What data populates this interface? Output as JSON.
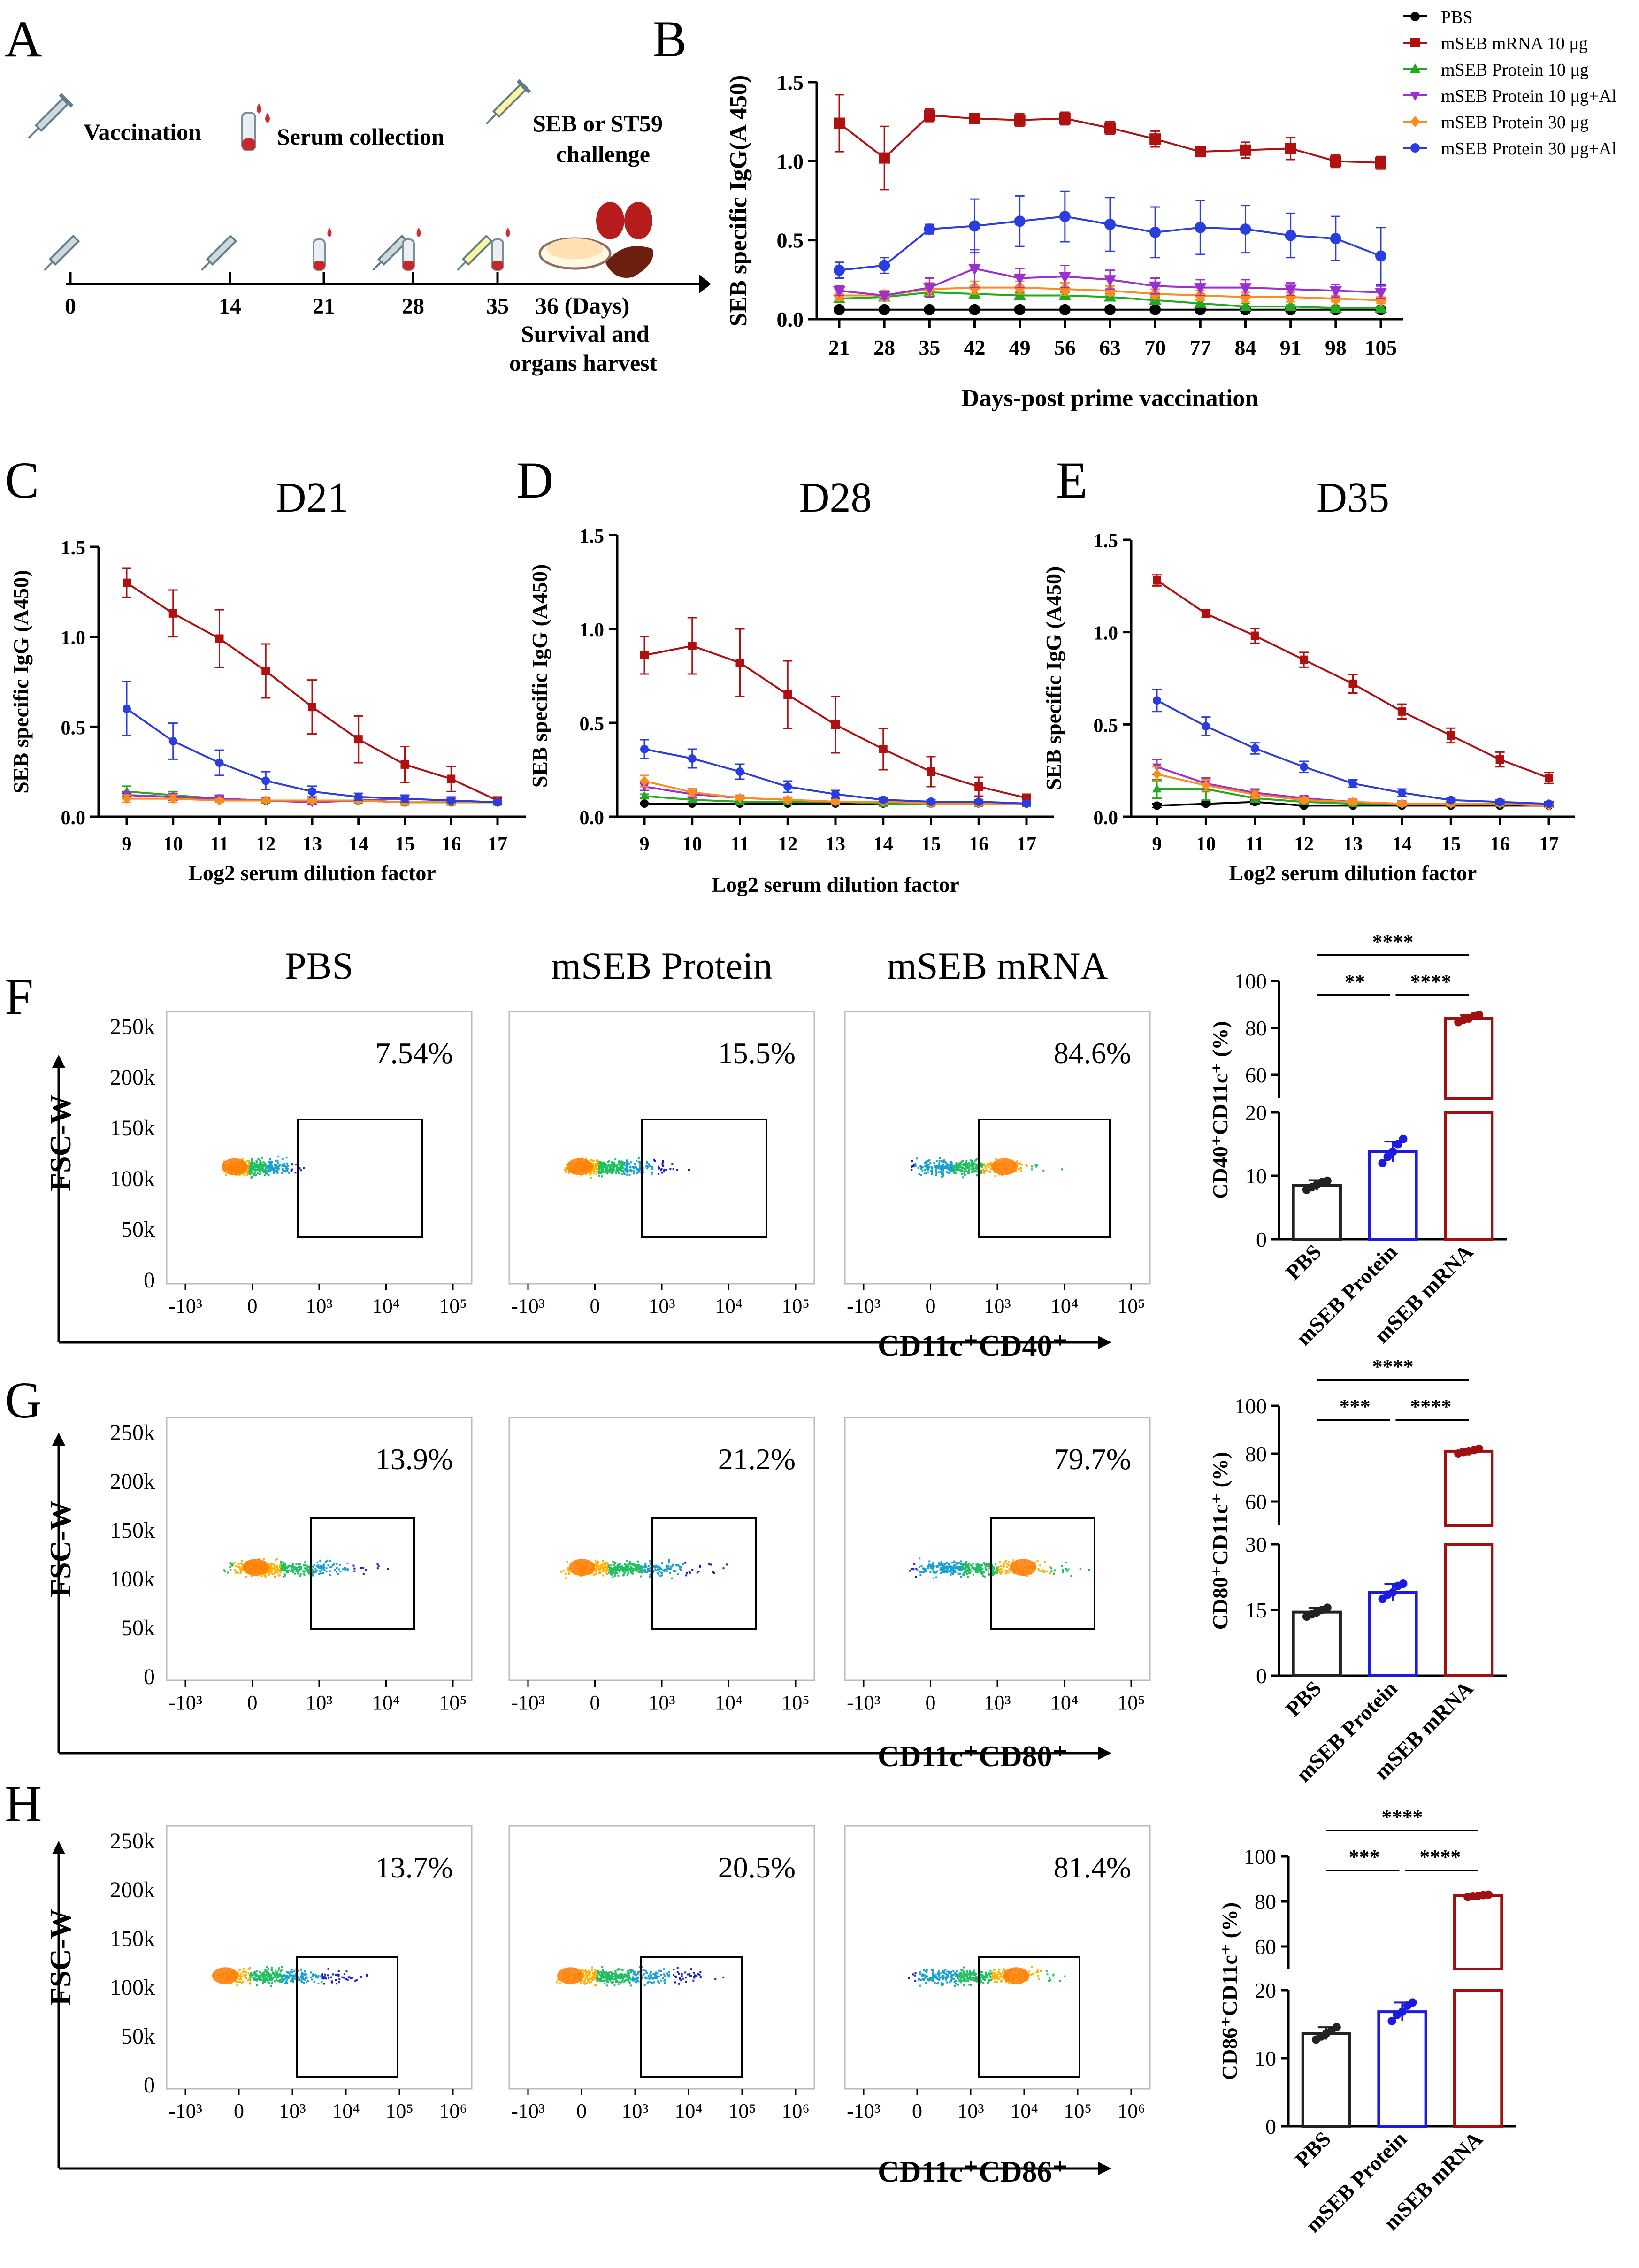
{
  "panel_letters": {
    "A": "A",
    "B": "B",
    "C": "C",
    "D": "D",
    "E": "E",
    "F": "F",
    "G": "G",
    "H": "H"
  },
  "colors": {
    "pbs": "#000000",
    "mrna10": "#b01010",
    "prot10": "#1faa1f",
    "prot10al": "#9b30d0",
    "prot30": "#ff8c1a",
    "prot30al": "#2a3de0",
    "mrna_bar": "#a01010",
    "protein_bar": "#1a1ae0",
    "gate": "#000000"
  },
  "timeline": {
    "icon_labels": {
      "vaccination": "Vaccination",
      "serum": "Serum collection",
      "challenge_1": "SEB or ST59",
      "challenge_2": "challenge"
    },
    "days": [
      "0",
      "14",
      "21",
      "28",
      "35"
    ],
    "day36": "36 (Days)",
    "outcome_1": "Survival and",
    "outcome_2": "organs harvest"
  },
  "chart_data": [
    {
      "id": "B",
      "type": "line",
      "title": "",
      "xlabel": "Days-post prime vaccination",
      "ylabel": "SEB specific IgG(A 450)",
      "x": [
        21,
        28,
        35,
        42,
        49,
        56,
        63,
        70,
        77,
        84,
        91,
        98,
        105
      ],
      "x_tick_labels": [
        "21",
        "28",
        "35",
        "42",
        "49",
        "56",
        "63",
        "70",
        "77",
        "84",
        "91",
        "98",
        "105"
      ],
      "y_ticks": [
        "0.0",
        "0.5",
        "1.0",
        "1.5"
      ],
      "ylim": [
        0,
        1.5
      ],
      "series": [
        {
          "name": "PBS",
          "key": "pbs",
          "marker": "circle",
          "values": [
            0.06,
            0.06,
            0.06,
            0.06,
            0.06,
            0.06,
            0.06,
            0.06,
            0.06,
            0.06,
            0.06,
            0.06,
            0.06
          ],
          "err": [
            0.005,
            0.005,
            0.005,
            0.005,
            0.005,
            0.005,
            0.005,
            0.005,
            0.005,
            0.005,
            0.005,
            0.005,
            0.005
          ]
        },
        {
          "name": "mSEB mRNA 10 μg",
          "key": "mrna10",
          "marker": "square",
          "values": [
            1.24,
            1.02,
            1.29,
            1.27,
            1.26,
            1.27,
            1.21,
            1.14,
            1.06,
            1.07,
            1.08,
            1.0,
            0.99
          ],
          "err": [
            0.18,
            0.2,
            0.04,
            0.03,
            0.04,
            0.04,
            0.04,
            0.05,
            0.01,
            0.05,
            0.07,
            0.04,
            0.04
          ]
        },
        {
          "name": "mSEB Protein 10 μg",
          "key": "prot10",
          "marker": "triangle",
          "values": [
            0.13,
            0.14,
            0.17,
            0.16,
            0.15,
            0.15,
            0.14,
            0.12,
            0.1,
            0.08,
            0.08,
            0.07,
            0.07
          ],
          "err": [
            0.02,
            0.02,
            0.03,
            0.03,
            0.02,
            0.02,
            0.02,
            0.02,
            0.02,
            0.02,
            0.01,
            0.01,
            0.01
          ]
        },
        {
          "name": "mSEB Protein 10 μg+Al",
          "key": "prot10al",
          "marker": "triangle-down",
          "values": [
            0.18,
            0.15,
            0.2,
            0.32,
            0.26,
            0.27,
            0.25,
            0.21,
            0.2,
            0.2,
            0.19,
            0.18,
            0.17
          ],
          "err": [
            0.03,
            0.02,
            0.06,
            0.12,
            0.06,
            0.07,
            0.06,
            0.05,
            0.05,
            0.05,
            0.04,
            0.04,
            0.04
          ]
        },
        {
          "name": "mSEB Protein 30 μg",
          "key": "prot30",
          "marker": "diamond",
          "values": [
            0.15,
            0.15,
            0.19,
            0.2,
            0.2,
            0.19,
            0.18,
            0.16,
            0.15,
            0.14,
            0.14,
            0.13,
            0.12
          ],
          "err": [
            0.03,
            0.03,
            0.04,
            0.04,
            0.04,
            0.04,
            0.03,
            0.03,
            0.03,
            0.03,
            0.03,
            0.02,
            0.02
          ]
        },
        {
          "name": "mSEB Protein 30 μg+Al",
          "key": "prot30al",
          "marker": "circle",
          "values": [
            0.31,
            0.34,
            0.57,
            0.59,
            0.62,
            0.65,
            0.6,
            0.55,
            0.58,
            0.57,
            0.53,
            0.51,
            0.4
          ],
          "err": [
            0.05,
            0.05,
            0.03,
            0.17,
            0.16,
            0.16,
            0.17,
            0.16,
            0.17,
            0.15,
            0.14,
            0.14,
            0.18
          ]
        }
      ]
    },
    {
      "id": "C",
      "type": "line",
      "title": "D21",
      "xlabel": "Log2 serum dilution factor",
      "ylabel": "SEB specific IgG (A450)",
      "x": [
        9,
        10,
        11,
        12,
        13,
        14,
        15,
        16,
        17
      ],
      "x_tick_labels": [
        "9",
        "10",
        "11",
        "12",
        "13",
        "14",
        "15",
        "16",
        "17"
      ],
      "y_ticks": [
        "0.0",
        "0.5",
        "1.0",
        "1.5"
      ],
      "ylim": [
        0,
        1.5
      ],
      "series": [
        {
          "name": "PBS",
          "key": "pbs",
          "values": [
            0.12,
            0.11,
            0.1,
            0.09,
            0.09,
            0.09,
            0.08,
            0.08,
            0.08
          ],
          "err": [
            0.01,
            0.01,
            0.01,
            0.01,
            0.01,
            0.01,
            0.01,
            0.01,
            0.01
          ]
        },
        {
          "name": "mSEB mRNA 10 μg",
          "key": "mrna10",
          "values": [
            1.3,
            1.13,
            0.99,
            0.81,
            0.61,
            0.43,
            0.29,
            0.21,
            0.09
          ],
          "err": [
            0.08,
            0.13,
            0.16,
            0.15,
            0.15,
            0.13,
            0.1,
            0.07,
            0.02
          ]
        },
        {
          "name": "mSEB Protein 10 μg",
          "key": "prot10",
          "values": [
            0.14,
            0.12,
            0.1,
            0.09,
            0.09,
            0.09,
            0.08,
            0.08,
            0.08
          ],
          "err": [
            0.03,
            0.02,
            0.02,
            0.01,
            0.01,
            0.01,
            0.01,
            0.01,
            0.01
          ]
        },
        {
          "name": "mSEB Protein 10 μg+Al",
          "key": "prot10al",
          "values": [
            0.12,
            0.11,
            0.1,
            0.09,
            0.08,
            0.09,
            0.1,
            0.09,
            0.08
          ],
          "err": [
            0.02,
            0.02,
            0.02,
            0.01,
            0.01,
            0.01,
            0.02,
            0.02,
            0.01
          ]
        },
        {
          "name": "mSEB Protein 30 μg",
          "key": "prot30",
          "values": [
            0.1,
            0.1,
            0.09,
            0.09,
            0.09,
            0.09,
            0.08,
            0.08,
            0.08
          ],
          "err": [
            0.02,
            0.02,
            0.01,
            0.01,
            0.01,
            0.01,
            0.01,
            0.01,
            0.01
          ]
        },
        {
          "name": "mSEB Protein 30 μg+Al",
          "key": "prot30al",
          "values": [
            0.6,
            0.42,
            0.3,
            0.2,
            0.14,
            0.11,
            0.1,
            0.09,
            0.08
          ],
          "err": [
            0.15,
            0.1,
            0.07,
            0.05,
            0.03,
            0.02,
            0.02,
            0.01,
            0.01
          ]
        }
      ]
    },
    {
      "id": "D",
      "type": "line",
      "title": "D28",
      "xlabel": "Log2 serum dilution factor",
      "ylabel": "SEB specific IgG (A450)",
      "x": [
        9,
        10,
        11,
        12,
        13,
        14,
        15,
        16,
        17
      ],
      "x_tick_labels": [
        "9",
        "10",
        "11",
        "12",
        "13",
        "14",
        "15",
        "16",
        "17"
      ],
      "y_ticks": [
        "0.0",
        "0.5",
        "1.0",
        "1.5"
      ],
      "ylim": [
        0,
        1.5
      ],
      "series": [
        {
          "name": "PBS",
          "key": "pbs",
          "values": [
            0.07,
            0.07,
            0.07,
            0.07,
            0.07,
            0.07,
            0.07,
            0.07,
            0.07
          ],
          "err": [
            0.005,
            0.005,
            0.005,
            0.005,
            0.005,
            0.005,
            0.005,
            0.005,
            0.005
          ]
        },
        {
          "name": "mSEB mRNA 10 μg",
          "key": "mrna10",
          "values": [
            0.86,
            0.91,
            0.82,
            0.65,
            0.49,
            0.36,
            0.24,
            0.16,
            0.1
          ],
          "err": [
            0.1,
            0.15,
            0.18,
            0.18,
            0.15,
            0.11,
            0.08,
            0.05,
            0.02
          ]
        },
        {
          "name": "mSEB Protein 10 μg",
          "key": "prot10",
          "values": [
            0.11,
            0.09,
            0.08,
            0.08,
            0.08,
            0.07,
            0.07,
            0.07,
            0.07
          ],
          "err": [
            0.01,
            0.01,
            0.01,
            0.01,
            0.01,
            0.01,
            0.01,
            0.01,
            0.01
          ]
        },
        {
          "name": "mSEB Protein 10 μg+Al",
          "key": "prot10al",
          "values": [
            0.16,
            0.12,
            0.1,
            0.09,
            0.08,
            0.08,
            0.07,
            0.07,
            0.07
          ],
          "err": [
            0.02,
            0.02,
            0.01,
            0.01,
            0.01,
            0.01,
            0.01,
            0.01,
            0.01
          ]
        },
        {
          "name": "mSEB Protein 30 μg",
          "key": "prot30",
          "values": [
            0.19,
            0.13,
            0.1,
            0.09,
            0.08,
            0.08,
            0.07,
            0.07,
            0.07
          ],
          "err": [
            0.03,
            0.02,
            0.01,
            0.01,
            0.01,
            0.01,
            0.01,
            0.01,
            0.01
          ]
        },
        {
          "name": "mSEB Protein 30 μg+Al",
          "key": "prot30al",
          "values": [
            0.36,
            0.31,
            0.24,
            0.16,
            0.12,
            0.09,
            0.08,
            0.08,
            0.07
          ],
          "err": [
            0.05,
            0.05,
            0.04,
            0.03,
            0.02,
            0.01,
            0.01,
            0.01,
            0.01
          ]
        }
      ]
    },
    {
      "id": "E",
      "type": "line",
      "title": "D35",
      "xlabel": "Log2 serum dilution factor",
      "ylabel": "SEB specific IgG (A450)",
      "x": [
        9,
        10,
        11,
        12,
        13,
        14,
        15,
        16,
        17
      ],
      "x_tick_labels": [
        "9",
        "10",
        "11",
        "12",
        "13",
        "14",
        "15",
        "16",
        "17"
      ],
      "y_ticks": [
        "0.0",
        "0.5",
        "1.0",
        "1.5"
      ],
      "ylim": [
        0,
        1.5
      ],
      "series": [
        {
          "name": "PBS",
          "key": "pbs",
          "values": [
            0.06,
            0.07,
            0.08,
            0.06,
            0.06,
            0.06,
            0.06,
            0.06,
            0.06
          ],
          "err": [
            0.01,
            0.01,
            0.01,
            0.005,
            0.005,
            0.005,
            0.005,
            0.005,
            0.005
          ]
        },
        {
          "name": "mSEB mRNA 10 μg",
          "key": "mrna10",
          "values": [
            1.28,
            1.1,
            0.98,
            0.85,
            0.72,
            0.57,
            0.44,
            0.31,
            0.21
          ],
          "err": [
            0.03,
            0.02,
            0.04,
            0.04,
            0.05,
            0.04,
            0.04,
            0.04,
            0.03
          ]
        },
        {
          "name": "mSEB Protein 10 μg",
          "key": "prot10",
          "values": [
            0.15,
            0.15,
            0.1,
            0.08,
            0.07,
            0.07,
            0.07,
            0.07,
            0.07
          ],
          "err": [
            0.05,
            0.06,
            0.02,
            0.01,
            0.01,
            0.01,
            0.01,
            0.01,
            0.01
          ]
        },
        {
          "name": "mSEB Protein 10 μg+Al",
          "key": "prot10al",
          "values": [
            0.27,
            0.18,
            0.13,
            0.1,
            0.08,
            0.07,
            0.07,
            0.07,
            0.06
          ],
          "err": [
            0.04,
            0.03,
            0.02,
            0.01,
            0.01,
            0.01,
            0.01,
            0.01,
            0.01
          ]
        },
        {
          "name": "mSEB Protein 30 μg",
          "key": "prot30",
          "values": [
            0.23,
            0.17,
            0.12,
            0.09,
            0.08,
            0.07,
            0.07,
            0.07,
            0.06
          ],
          "err": [
            0.04,
            0.03,
            0.02,
            0.01,
            0.01,
            0.01,
            0.01,
            0.01,
            0.01
          ]
        },
        {
          "name": "mSEB Protein 30 μg+Al",
          "key": "prot30al",
          "values": [
            0.63,
            0.49,
            0.37,
            0.27,
            0.18,
            0.13,
            0.09,
            0.08,
            0.07
          ],
          "err": [
            0.06,
            0.05,
            0.03,
            0.03,
            0.02,
            0.02,
            0.01,
            0.01,
            0.01
          ]
        }
      ]
    },
    {
      "id": "F-bar",
      "type": "bar",
      "ylabel": "CD40⁺CD11c⁺ (%)",
      "categories": [
        "PBS",
        "mSEB Protein",
        "mSEB mRNA"
      ],
      "values": [
        8.5,
        13.8,
        84.0
      ],
      "err": [
        0.8,
        1.6,
        1.5
      ],
      "points": [
        [
          7.8,
          8.2,
          8.6,
          9.0,
          9.2
        ],
        [
          12.0,
          13.0,
          13.8,
          15.0,
          15.8
        ],
        [
          82.5,
          83.5,
          84.0,
          85.0,
          85.5
        ]
      ],
      "y_ticks_low": [
        "0",
        "10",
        "20"
      ],
      "y_ticks_high": [
        "60",
        "80",
        "100"
      ],
      "low_range": [
        0,
        20
      ],
      "high_range": [
        50,
        100
      ],
      "significance": [
        "****",
        "**",
        "****"
      ]
    },
    {
      "id": "G-bar",
      "type": "bar",
      "ylabel": "CD80⁺CD11c⁺ (%)",
      "categories": [
        "PBS",
        "mSEB Protein",
        "mSEB mRNA"
      ],
      "values": [
        14.5,
        19.0,
        81.0
      ],
      "err": [
        1.0,
        2.0,
        1.0
      ],
      "points": [
        [
          13.5,
          14.0,
          14.5,
          15.0,
          15.5
        ],
        [
          17.5,
          18.5,
          19.0,
          20.5,
          21.0
        ],
        [
          80.0,
          80.5,
          81.0,
          81.5,
          82.0
        ]
      ],
      "y_ticks_low": [
        "0",
        "15",
        "30"
      ],
      "y_ticks_high": [
        "60",
        "80",
        "100"
      ],
      "low_range": [
        0,
        30
      ],
      "high_range": [
        50,
        100
      ],
      "significance": [
        "****",
        "***",
        "****"
      ]
    },
    {
      "id": "H-bar",
      "type": "bar",
      "ylabel": "CD86⁺CD11c⁺ (%)",
      "categories": [
        "PBS",
        "mSEB Protein",
        "mSEB mRNA"
      ],
      "values": [
        15.0,
        18.5,
        82.5
      ],
      "err": [
        1.0,
        1.5,
        0.5
      ],
      "points": [
        [
          14.0,
          14.5,
          15.0,
          15.5,
          16.0
        ],
        [
          17.0,
          18.0,
          18.5,
          19.5,
          20.0
        ],
        [
          82.0,
          82.3,
          82.5,
          82.8,
          83.0
        ]
      ],
      "y_ticks_low": [
        "0",
        "10",
        "20"
      ],
      "y_ticks_high": [
        "60",
        "80",
        "100"
      ],
      "low_range": [
        0,
        22
      ],
      "high_range": [
        50,
        100
      ],
      "significance": [
        "****",
        "***",
        "****"
      ]
    }
  ],
  "flow": {
    "column_titles": [
      "PBS",
      "mSEB Protein",
      "mSEB mRNA"
    ],
    "ylabel": "FSC-W",
    "y_ticks": [
      "250k",
      "200k",
      "150k",
      "100k",
      "50k",
      "0"
    ],
    "x_ticks_F": [
      "-10³",
      "0",
      "10³",
      "10⁴",
      "10⁵"
    ],
    "x_ticks_H": [
      "-10³",
      "0",
      "10³",
      "10⁴",
      "10⁵",
      "10⁶"
    ],
    "rows": [
      {
        "id": "F",
        "xlabel": "CD11c⁺CD40⁺",
        "percents": [
          "7.54%",
          "15.5%",
          "84.6%"
        ]
      },
      {
        "id": "G",
        "xlabel": "CD11c⁺CD80⁺",
        "percents": [
          "13.9%",
          "21.2%",
          "79.7%"
        ]
      },
      {
        "id": "H",
        "xlabel": "CD11c⁺CD86⁺",
        "percents": [
          "13.7%",
          "20.5%",
          "81.4%"
        ]
      }
    ]
  }
}
